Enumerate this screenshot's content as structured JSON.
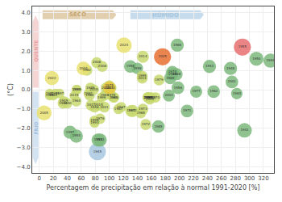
{
  "chart_data": {
    "type": "bubble",
    "xlabel": "Percentagem de precipitação em relação à normal 1991-2020 [%]",
    "ylabel": "(°C)",
    "xlim": [
      -10,
      335
    ],
    "ylim": [
      -4.3,
      4.3
    ],
    "xticks": [
      0,
      20,
      40,
      60,
      80,
      100,
      120,
      140,
      160,
      180,
      200,
      220,
      240,
      260,
      280,
      300,
      320
    ],
    "yticks": [
      {
        "value": -4.0,
        "label": "−4.0"
      },
      {
        "value": -3.0,
        "label": "−3.0"
      },
      {
        "value": -2.0,
        "label": "−2.0"
      },
      {
        "value": -1.0,
        "label": "−1.0"
      },
      {
        "value": 0.0,
        "label": "0.0"
      },
      {
        "value": 1.0,
        "label": "1.0"
      },
      {
        "value": 2.0,
        "label": "2.0"
      },
      {
        "value": 3.0,
        "label": "3.0"
      },
      {
        "value": 4.0,
        "label": "4.0"
      }
    ],
    "grid": true,
    "labels": [
      "1941",
      "1942",
      "1943",
      "1944",
      "1945",
      "1946",
      "1947",
      "1948",
      "1949",
      "1950",
      "1951",
      "1952",
      "1953",
      "1954",
      "1955",
      "1956",
      "1957",
      "1958",
      "1959",
      "1960",
      "1961",
      "1962",
      "1963",
      "1964",
      "1965",
      "1966",
      "1967",
      "1968",
      "1969",
      "1970",
      "1971",
      "1972",
      "1973",
      "1974",
      "1975",
      "1976",
      "1977",
      "1978",
      "1979",
      "1980",
      "1981",
      "1982",
      "1983",
      "1984",
      "1985",
      "1986",
      "1987",
      "1988",
      "1989",
      "1990",
      "1991",
      "1992",
      "1993",
      "1994",
      "1995",
      "1996",
      "1997",
      "1998",
      "1999",
      "2000",
      "2001",
      "2002",
      "2003",
      "2004",
      "2005",
      "2006",
      "2007",
      "2008",
      "2009",
      "2010",
      "2011",
      "2012",
      "2013",
      "2014",
      "2015",
      "2016",
      "2017",
      "2018",
      "2019",
      "2020",
      "2021",
      "2022",
      "2023",
      "2024",
      "2025"
    ],
    "x": [
      293,
      133,
      243,
      34,
      83,
      79,
      131,
      273,
      35,
      310,
      15,
      87,
      84,
      53,
      290,
      198,
      44,
      130,
      140,
      72,
      106,
      249,
      282,
      53,
      145,
      197,
      117,
      196,
      187,
      166,
      211,
      152,
      148,
      190,
      100,
      87,
      224,
      103,
      171,
      158,
      15,
      68,
      20,
      93,
      170,
      107,
      113,
      190,
      73,
      53,
      23,
      70,
      79,
      330,
      147,
      79,
      29,
      155,
      89,
      40,
      275,
      95,
      185,
      63,
      7,
      90,
      155,
      82,
      54,
      160,
      103,
      156,
      147,
      148,
      85,
      155,
      74,
      78,
      50,
      158,
      93,
      18,
      100,
      121,
      176
    ],
    "values": [
      -2.1,
      -1.1,
      1.2,
      -0.7,
      -3.2,
      -0.9,
      -1.1,
      1.1,
      -0.6,
      1.6,
      -0.3,
      -2.6,
      -2.6,
      -2.4,
      2.2,
      0.1,
      -2.2,
      1.2,
      1.1,
      -0.3,
      -0.4,
      -0.1,
      -0.2,
      -0.6,
      -1.2,
      2.3,
      -0.9,
      0.8,
      0.6,
      -0.4,
      -1.1,
      -1.8,
      -1.0,
      0.9,
      0.2,
      -1.5,
      -0.1,
      -0.3,
      0.5,
      -0.4,
      -0.2,
      1.0,
      -0.3,
      -0.3,
      -1.9,
      -0.4,
      -1.0,
      0.8,
      0.1,
      0.0,
      -0.2,
      -0.2,
      -1.7,
      1.5,
      0.7,
      -1.6,
      -0.2,
      -0.4,
      -0.4,
      -0.7,
      0.4,
      0.1,
      -0.3,
      1.1,
      -1.2,
      1.2,
      -0.4,
      1.4,
      0.0,
      -0.4,
      0.1,
      -0.4,
      0.6,
      1.7,
      -0.8,
      -0.4,
      -0.8,
      0.0,
      -0.3,
      -0.5,
      -0.9,
      0.6,
      0.1,
      2.3,
      1.7
    ],
    "sizes": [
      80,
      55,
      65,
      45,
      110,
      45,
      50,
      65,
      40,
      75,
      35,
      65,
      65,
      65,
      110,
      60,
      65,
      60,
      50,
      40,
      40,
      60,
      50,
      40,
      45,
      65,
      40,
      55,
      55,
      40,
      60,
      45,
      45,
      60,
      45,
      40,
      55,
      40,
      45,
      40,
      35,
      45,
      35,
      40,
      60,
      40,
      40,
      55,
      40,
      35,
      35,
      35,
      40,
      75,
      45,
      40,
      35,
      40,
      35,
      40,
      60,
      40,
      55,
      70,
      85,
      45,
      40,
      45,
      35,
      40,
      40,
      40,
      45,
      55,
      45,
      40,
      45,
      40,
      35,
      40,
      45,
      75,
      60,
      90,
      110
    ],
    "colors": [
      "#7db87d",
      "#c8d870",
      "#7db87d",
      "#c8d870",
      "#a8c8e0",
      "#c8d870",
      "#c8d870",
      "#7db87d",
      "#c8d870",
      "#7db87d",
      "#c8d870",
      "#7db87d",
      "#7db87d",
      "#7db87d",
      "#e87070",
      "#7db87d",
      "#7db87d",
      "#7db87d",
      "#7db87d",
      "#c8d870",
      "#c8d870",
      "#7db87d",
      "#7db87d",
      "#c8d870",
      "#c8d870",
      "#7db87d",
      "#c8d870",
      "#7db87d",
      "#7db87d",
      "#c8d870",
      "#7db87d",
      "#c8d870",
      "#c8d870",
      "#7db87d",
      "#c8d870",
      "#c8d870",
      "#7db87d",
      "#c8d870",
      "#c8d870",
      "#c8d870",
      "#c8d870",
      "#c8d870",
      "#c8d870",
      "#c8d870",
      "#7db87d",
      "#c8d870",
      "#c8d870",
      "#7db87d",
      "#c8d870",
      "#c8d870",
      "#c8d870",
      "#c8d870",
      "#c8d870",
      "#7db87d",
      "#c8d870",
      "#c8d870",
      "#c8d870",
      "#c8d870",
      "#c8d870",
      "#c8d870",
      "#7db87d",
      "#c8d870",
      "#7db87d",
      "#e8e070",
      "#e8e070",
      "#c8d870",
      "#c8d870",
      "#c8d870",
      "#c8d870",
      "#c8d870",
      "#c8d870",
      "#c8d870",
      "#c8d870",
      "#c8d870",
      "#c8d870",
      "#c8d870",
      "#c8d870",
      "#c8d870",
      "#c8d870",
      "#c8d870",
      "#c8d870",
      "#e8e070",
      "#e8c840",
      "#e8e070",
      "#e87030"
    ],
    "annotations": [
      {
        "text": "SECO",
        "color": "#c8a870"
      },
      {
        "text": "HÚMIDO",
        "color": "#a8c8e0"
      },
      {
        "text": "QUENTE",
        "color": "#e8a0a0"
      },
      {
        "text": "FRIO",
        "color": "#a0c0e0"
      }
    ]
  }
}
